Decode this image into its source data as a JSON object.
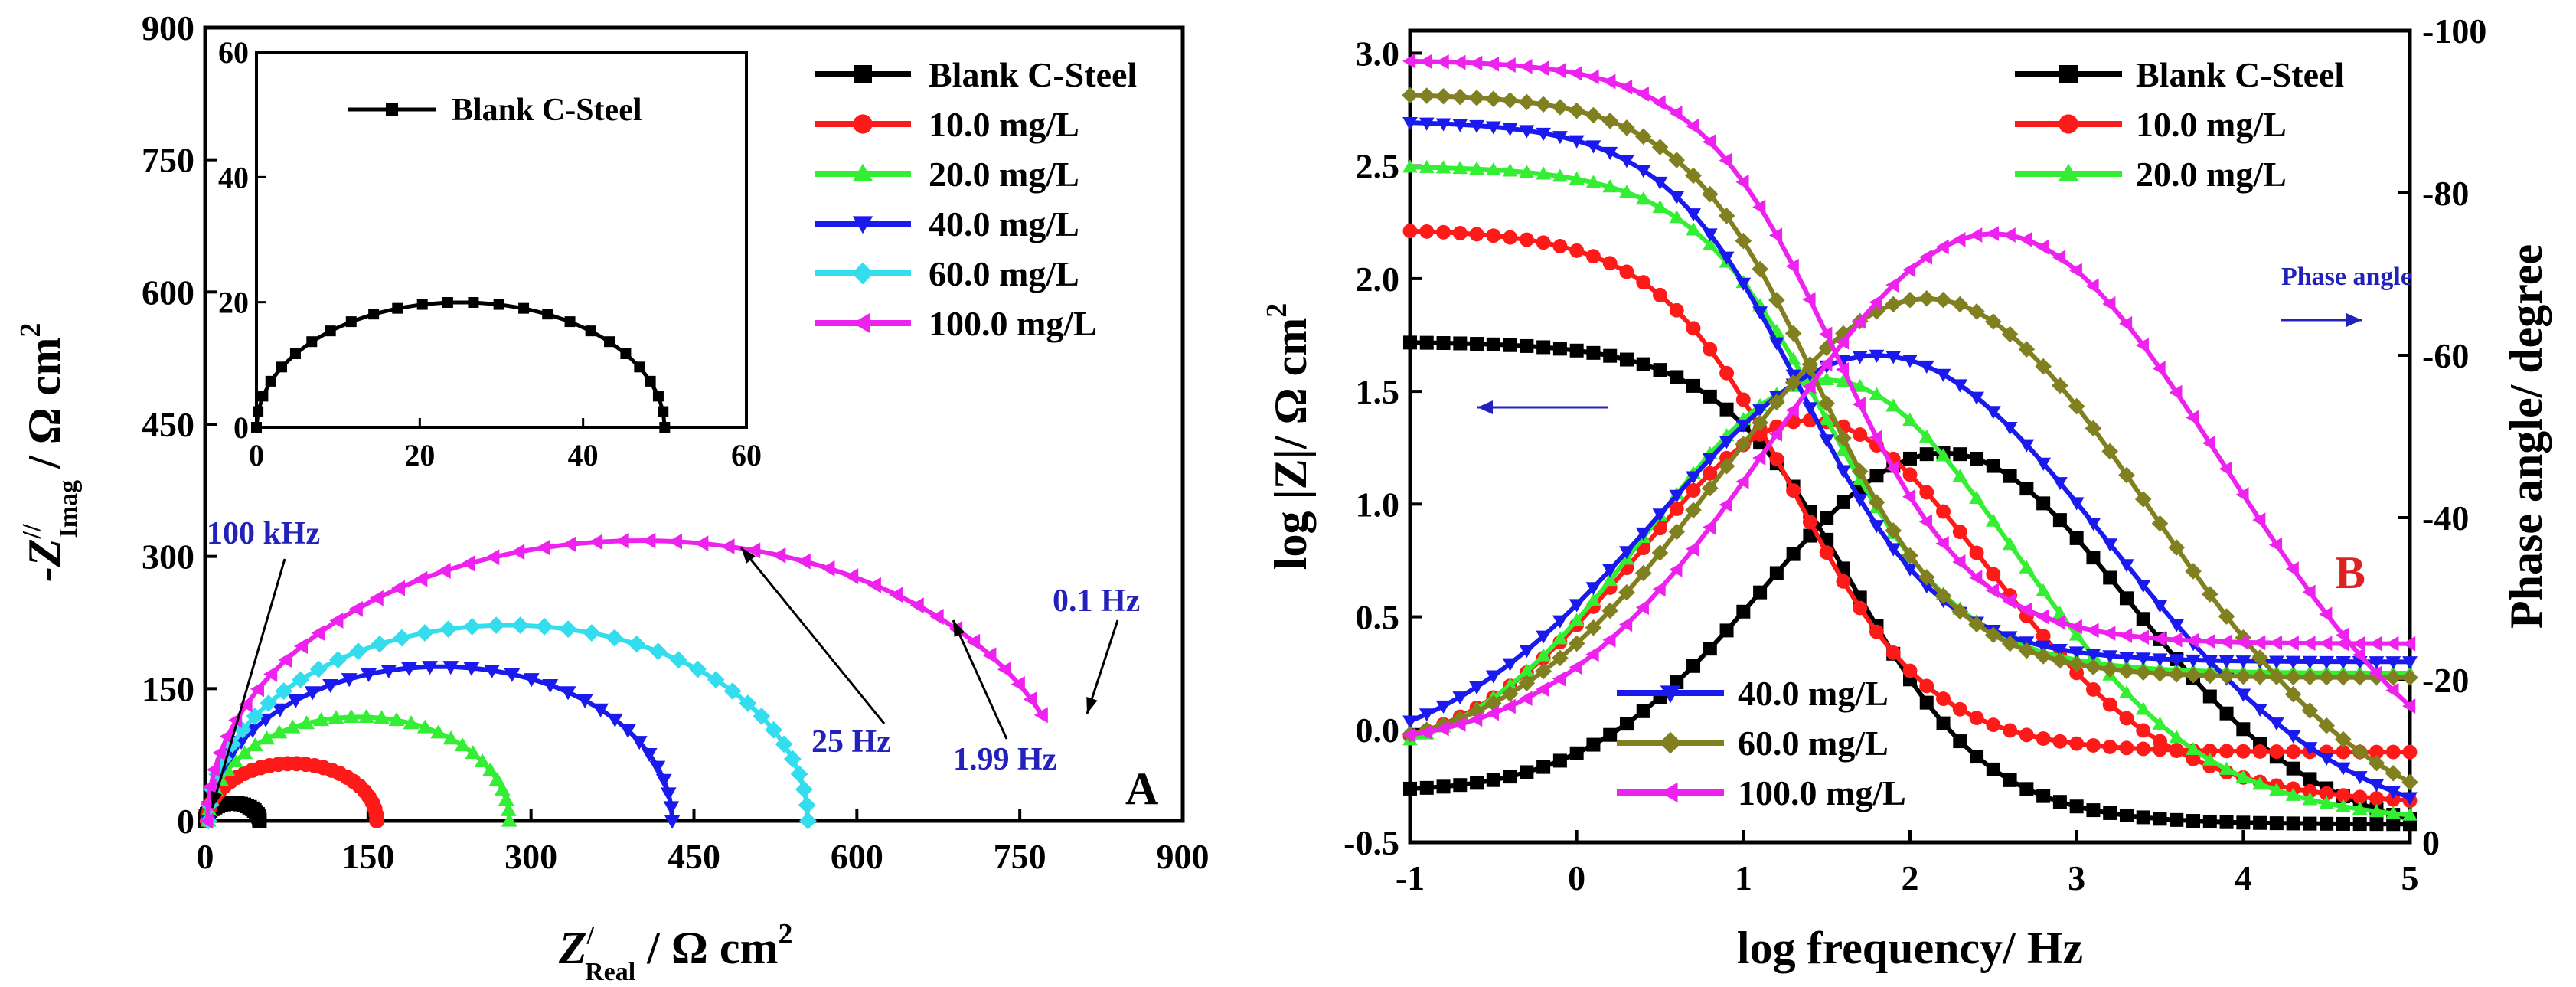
{
  "chart_data": [
    {
      "panel": "A",
      "type": "scatter",
      "title": "",
      "panel_label": "A",
      "xlabel": {
        "main": "Z",
        "prime": "/",
        "sub": "Real",
        "unit": " / Ω cm",
        "sup": "2"
      },
      "ylabel": {
        "main": "-Z",
        "prime": "//",
        "sub": "Imag",
        "unit": " / Ω cm",
        "sup": "2"
      },
      "xlim": [
        0,
        900
      ],
      "ylim": [
        0,
        900
      ],
      "xticks": [
        0,
        150,
        300,
        450,
        600,
        750,
        900
      ],
      "yticks": [
        0,
        150,
        300,
        450,
        600,
        750,
        900
      ],
      "series": [
        {
          "name": "Blank C-Steel",
          "color": "#000000",
          "marker": "square",
          "real": [
            0,
            50
          ],
          "imag_max": 20,
          "npts": 26
        },
        {
          "name": "10.0 mg/L",
          "color": "#ff1a1a",
          "marker": "circle",
          "real": [
            2,
            158
          ],
          "imag_max": 65,
          "npts": 30
        },
        {
          "name": "20.0 mg/L",
          "color": "#33ee33",
          "marker": "triangle-up",
          "real": [
            3,
            280
          ],
          "imag_max": 118,
          "npts": 32
        },
        {
          "name": "40.0 mg/L",
          "color": "#1a1aee",
          "marker": "triangle-down",
          "real": [
            3,
            430
          ],
          "imag_max": 175,
          "npts": 36
        },
        {
          "name": "60.0 mg/L",
          "color": "#33ddee",
          "marker": "diamond",
          "real": [
            3,
            555
          ],
          "imag_max": 222,
          "npts": 40
        },
        {
          "name": "100.0 mg/L",
          "color": "#ee22ee",
          "marker": "triangle-left",
          "real": [
            2,
            800
          ],
          "imag_max": 318,
          "npts": 46,
          "end_imag": 120
        }
      ],
      "annotations": [
        {
          "text": "100 kHz",
          "color": "#2222bb",
          "x": 1,
          "y": 2
        },
        {
          "text": "25 Hz",
          "color": "#2222bb",
          "x": 1,
          "y": 2
        },
        {
          "text": "1.99 Hz",
          "color": "#2222bb",
          "x": 1,
          "y": 2
        },
        {
          "text": "0.1 Hz",
          "color": "#2222bb",
          "x": 1,
          "y": 2
        }
      ],
      "inset": {
        "xlim": [
          0,
          60
        ],
        "ylim": [
          0,
          60
        ],
        "xticks": [
          0,
          20,
          40,
          60
        ],
        "yticks": [
          0,
          20,
          40,
          60
        ],
        "legend": "Blank C-Steel"
      }
    },
    {
      "panel": "B",
      "type": "line",
      "title": "",
      "panel_label": "B",
      "xlabel": "log frequency/ Hz",
      "ylabel_left": {
        "text": "log |Z|/ Ω cm",
        "sup": "2"
      },
      "ylabel_right": "Phase angle/ degree",
      "xlim": [
        -1,
        5
      ],
      "ylim_left": [
        -0.5,
        3.1
      ],
      "ylim_right": [
        0,
        -100
      ],
      "xticks": [
        -1,
        0,
        1,
        2,
        3,
        4,
        5
      ],
      "yticks_left": [
        "-0.5",
        "0.0",
        "0.5",
        "1.0",
        "1.5",
        "2.0",
        "2.5",
        "3.0"
      ],
      "yticks_right": [
        "0",
        "-20",
        "-40",
        "-60",
        "-80",
        "-100"
      ],
      "phase_arrow_label": "Phase angle",
      "series": [
        {
          "name": "Blank C-Steel",
          "color": "#000000",
          "marker": "square",
          "logz_low": 1.72,
          "logz_high": -0.42,
          "logz_fc": 1.65,
          "phase_max": 48,
          "phase_fmax": 2.2,
          "phase_width": 1.1,
          "phase_low": 6,
          "phase_high": 1
        },
        {
          "name": "10.0 mg/L",
          "color": "#ff1a1a",
          "marker": "circle",
          "logz_low": 2.22,
          "logz_high": -0.1,
          "logz_fc": 1.3,
          "phase_max": 52,
          "phase_fmax": 1.4,
          "phase_width": 1.05,
          "phase_low": 10,
          "phase_high": 5
        },
        {
          "name": "20.0 mg/L",
          "color": "#33ee33",
          "marker": "triangle-up",
          "logz_low": 2.5,
          "logz_high": 0.25,
          "logz_fc": 1.5,
          "phase_max": 57,
          "phase_fmax": 1.5,
          "phase_width": 1.1,
          "phase_low": 9,
          "phase_high": 3
        },
        {
          "name": "40.0 mg/L",
          "color": "#1a1aee",
          "marker": "triangle-down",
          "logz_low": 2.7,
          "logz_high": 0.3,
          "logz_fc": 1.35,
          "phase_max": 60,
          "phase_fmax": 1.8,
          "phase_width": 1.35,
          "phase_low": 9,
          "phase_high": 2
        },
        {
          "name": "60.0 mg/L",
          "color": "#808020",
          "marker": "diamond",
          "logz_low": 2.82,
          "logz_high": 0.23,
          "logz_fc": 1.45,
          "phase_max": 67,
          "phase_fmax": 2.1,
          "phase_width": 1.3,
          "phase_low": 10,
          "phase_high": 2
        },
        {
          "name": "100.0 mg/L",
          "color": "#ee22ee",
          "marker": "triangle-left",
          "logz_low": 2.97,
          "logz_high": 0.38,
          "logz_fc": 1.55,
          "phase_max": 75,
          "phase_fmax": 2.5,
          "phase_width": 1.35,
          "phase_low": 11,
          "phase_high": 4
        }
      ]
    }
  ]
}
